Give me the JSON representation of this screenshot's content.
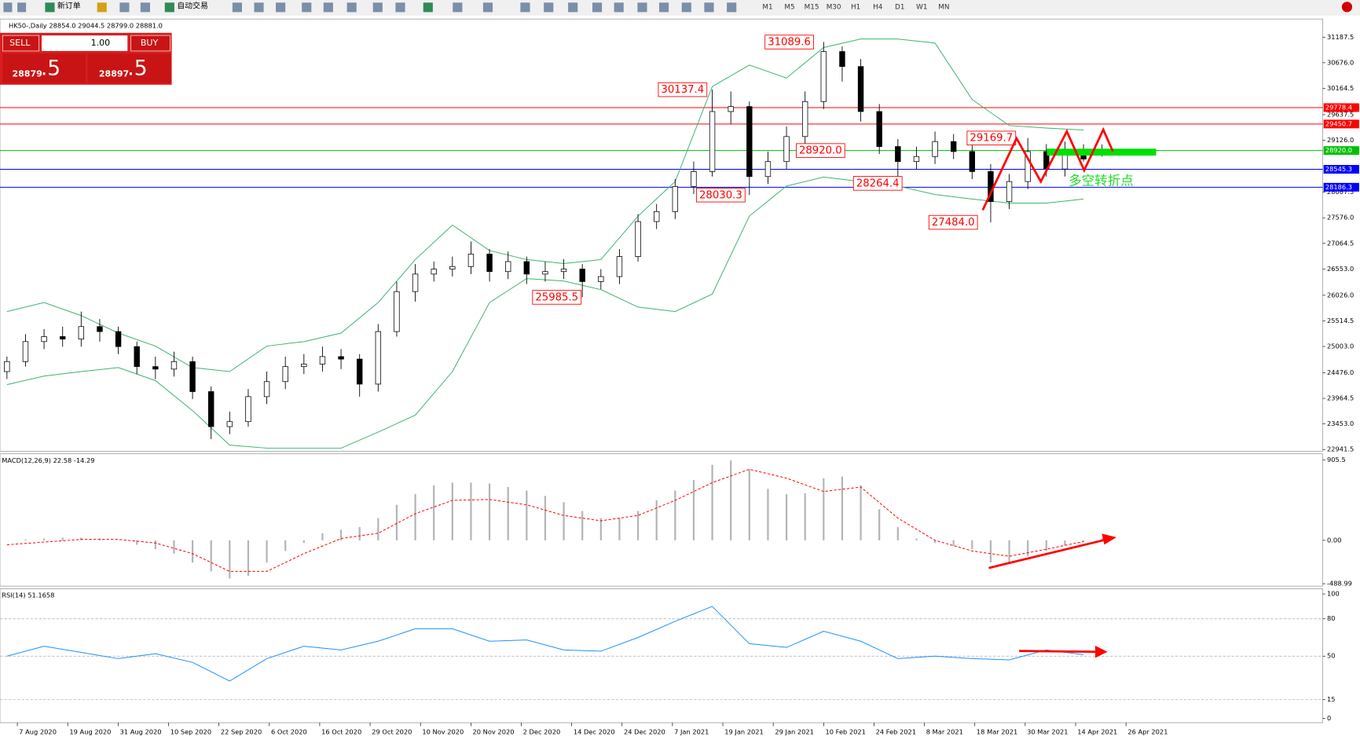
{
  "toolbar": {
    "new_order": "新订单",
    "auto_trade": "自动交易",
    "timeframes": [
      "M1",
      "M5",
      "M15",
      "M30",
      "H1",
      "H4",
      "D1",
      "W1",
      "MN"
    ]
  },
  "trade_panel": {
    "sell": "SELL",
    "lots": "1.00",
    "buy": "BUY",
    "bid_main": "28879",
    "bid_frac": ".5",
    "ask_main": "28897",
    "ask_frac": ".5"
  },
  "chart_data": [
    {
      "type": "candlestick",
      "title": "HK50-,Daily  28854.0 29044.5 28799.0 28881.0",
      "x_tick_labels": [
        "7 Aug 2020",
        "19 Aug 2020",
        "31 Aug 2020",
        "10 Sep 2020",
        "22 Sep 2020",
        "6 Oct 2020",
        "16 Oct 2020",
        "29 Oct 2020",
        "10 Nov 2020",
        "20 Nov 2020",
        "2 Dec 2020",
        "14 Dec 2020",
        "24 Dec 2020",
        "7 Jan 2021",
        "19 Jan 2021",
        "29 Jan 2021",
        "10 Feb 2021",
        "24 Feb 2021",
        "8 Mar 2021",
        "18 Mar 2021",
        "30 Mar 2021",
        "14 Apr 2021",
        "26 Apr 2021"
      ],
      "open": [
        24500,
        24700,
        25100,
        25200,
        25150,
        25400,
        25300,
        25000,
        24600,
        24550,
        24700,
        24100,
        23400,
        23500,
        24000,
        24300,
        24600,
        24650,
        24800,
        24750,
        24250,
        25300,
        26100,
        26450,
        26550,
        26600,
        26850,
        26500,
        26700,
        26450,
        26500,
        26550,
        26300,
        26400,
        26800,
        27500,
        27700,
        28200,
        28500,
        29700,
        29800,
        28400,
        28700,
        29200,
        29900,
        30900,
        30600,
        29700,
        29000,
        28700,
        28800,
        29100,
        28900,
        28500,
        27900,
        28300,
        28900,
        28550,
        28900,
        28854
      ],
      "high": [
        24800,
        25250,
        25350,
        25400,
        25700,
        25550,
        25400,
        25100,
        24800,
        24900,
        24800,
        24200,
        23700,
        24150,
        24500,
        24800,
        24850,
        25000,
        24950,
        24850,
        25450,
        26300,
        26650,
        26700,
        26800,
        27100,
        26950,
        26900,
        26800,
        26700,
        26750,
        26650,
        26550,
        26950,
        27650,
        27850,
        28350,
        28700,
        30137.4,
        30100,
        29900,
        28900,
        29400,
        30100,
        31089.6,
        31000,
        30750,
        29850,
        29150,
        29000,
        29300,
        29250,
        29050,
        28650,
        28450,
        29169.7,
        29050,
        29100,
        29044.5,
        29044.5
      ],
      "low": [
        24350,
        24600,
        24950,
        25000,
        25000,
        25100,
        24850,
        24450,
        24350,
        24400,
        23950,
        23150,
        23250,
        23400,
        23850,
        24150,
        24450,
        24500,
        24550,
        24000,
        24100,
        25200,
        25900,
        26300,
        26400,
        26450,
        26300,
        26350,
        26250,
        26300,
        26350,
        25985.5,
        26150,
        26250,
        26700,
        27350,
        27550,
        28050,
        28400,
        29450,
        28030.3,
        28250,
        28550,
        29050,
        29750,
        30300,
        29500,
        28850,
        28264.4,
        28550,
        28650,
        28750,
        28350,
        27484.0,
        27750,
        28150,
        28400,
        28400,
        28700,
        28799
      ],
      "close": [
        24700,
        25100,
        25200,
        25150,
        25400,
        25300,
        25000,
        24600,
        24550,
        24700,
        24100,
        23400,
        23500,
        24000,
        24300,
        24600,
        24650,
        24800,
        24750,
        24250,
        25300,
        26100,
        26450,
        26550,
        26600,
        26850,
        26500,
        26700,
        26450,
        26500,
        26550,
        26300,
        26400,
        26800,
        27500,
        27700,
        28200,
        28500,
        29700,
        29800,
        28400,
        28700,
        29200,
        29900,
        30900,
        30600,
        29700,
        29000,
        28700,
        28800,
        29100,
        28900,
        28500,
        27900,
        28300,
        28900,
        28550,
        28900,
        28750,
        28881
      ],
      "upper_band": {
        "color": "#3cb371",
        "values": [
          25700,
          25880,
          25620,
          25270,
          25010,
          24580,
          24500,
          25010,
          25100,
          25270,
          25880,
          26740,
          27430,
          26920,
          26740,
          26660,
          26740,
          27610,
          28300,
          30200,
          30630,
          30370,
          30980,
          31150,
          31150,
          31070,
          29940,
          29420,
          29370,
          29330
        ]
      },
      "lower_band": {
        "color": "#3cb371",
        "values": [
          24240,
          24410,
          24500,
          24580,
          24320,
          23720,
          23030,
          22970,
          22970,
          22970,
          23290,
          23630,
          24500,
          25880,
          26360,
          26310,
          26140,
          25790,
          25700,
          26050,
          27610,
          28210,
          28390,
          28300,
          28210,
          28040,
          27950,
          27870,
          27870,
          27950
        ]
      },
      "ylim": [
        22907,
        31550
      ],
      "yticks": [
        31187.5,
        {
          "value": 30676,
          "label": "30676.0"
        },
        30164.5,
        29637.5,
        {
          "value": 29126,
          "label": "29126.0"
        },
        28087.5,
        {
          "value": 27576,
          "label": "27576.0"
        },
        27064.5,
        {
          "value": 26553,
          "label": "26553.0"
        },
        {
          "value": 26026,
          "label": "26026.0"
        },
        25514.5,
        {
          "value": 25003,
          "label": "25003.0"
        },
        {
          "value": 24476,
          "label": "24476.0"
        },
        23964.5,
        {
          "value": 23453,
          "label": "23453.0"
        },
        22941.5
      ],
      "levels": [
        {
          "value": 29778.4,
          "label": "29778.4",
          "color": "#ff0000"
        },
        {
          "value": 29450.7,
          "label": "29450.7",
          "color": "#ff0000"
        },
        {
          "value": 28920,
          "label": "28920.0",
          "color": "#00c000"
        },
        {
          "value": 28545.3,
          "label": "28545.3",
          "color": "#0000ff"
        },
        {
          "value": 28186.3,
          "label": "28186.3",
          "color": "#0000ff"
        }
      ],
      "annotations": [
        {
          "value": 31089.6,
          "label": "31089.6"
        },
        {
          "value": 30137.4,
          "label": "30137.4"
        },
        {
          "value": 28920,
          "label": "28920.0"
        },
        {
          "value": 29169.7,
          "label": "29169.7"
        },
        {
          "value": 28030.3,
          "label": "28030.3"
        },
        {
          "value": 28264.4,
          "label": "28264.4"
        },
        {
          "value": 27484,
          "label": "27484.0"
        },
        {
          "value": 25985.5,
          "label": "25985.5"
        }
      ],
      "note": "多空转折点"
    },
    {
      "type": "bar",
      "title": "MACD(12,26,9) 22.58 -14.29",
      "color": "#b4b4b4",
      "values": [
        0,
        10,
        20,
        30,
        30,
        20,
        0,
        -50,
        -100,
        -150,
        -250,
        -350,
        -430,
        -400,
        -250,
        -120,
        -30,
        80,
        120,
        150,
        250,
        400,
        520,
        620,
        650,
        650,
        640,
        600,
        560,
        500,
        430,
        330,
        250,
        250,
        330,
        450,
        560,
        680,
        850,
        900,
        800,
        580,
        520,
        530,
        700,
        720,
        620,
        350,
        150,
        20,
        -30,
        -60,
        -100,
        -250,
        -250,
        -180,
        -120,
        -60,
        -20,
        22.58
      ],
      "signal": {
        "color": "#ff0000",
        "values": [
          -50,
          -20,
          10,
          10,
          -30,
          -150,
          -350,
          -350,
          -150,
          20,
          80,
          300,
          450,
          460,
          400,
          280,
          220,
          280,
          450,
          650,
          800,
          700,
          550,
          600,
          250,
          0,
          -120,
          -180,
          -100,
          -14.29
        ]
      },
      "ylim": [
        -516,
        974
      ],
      "yticks": [
        905.5,
        {
          "value": 0,
          "label": "0.00"
        },
        -488.99
      ]
    },
    {
      "type": "line",
      "title": "RSI(14) 51.1658",
      "color": "#1e90ff",
      "values": [
        50,
        58,
        53,
        48,
        52,
        45,
        30,
        48,
        58,
        55,
        62,
        72,
        72,
        62,
        63,
        55,
        54,
        65,
        78,
        90,
        60,
        57,
        70,
        62,
        48,
        50,
        48,
        47,
        55,
        51.1658
      ],
      "ylim": [
        -3.5,
        104.2
      ],
      "yticks": [
        100,
        80,
        50,
        15,
        0
      ],
      "levels": [
        80,
        50,
        15
      ]
    }
  ]
}
